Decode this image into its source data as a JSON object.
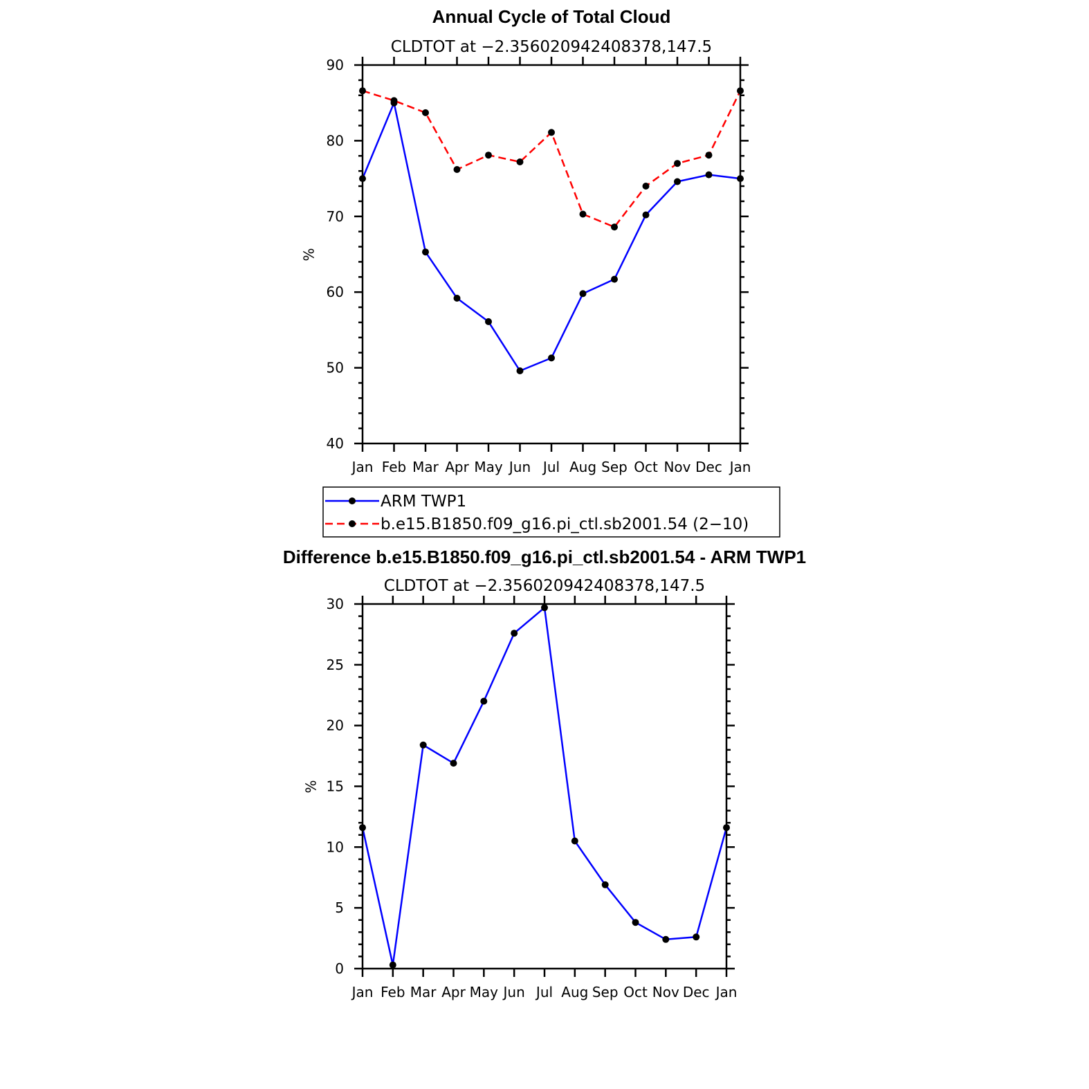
{
  "chart_data": [
    {
      "type": "line",
      "title": "Annual Cycle of Total Cloud",
      "subtitle": "CLDTOT at −2.356020942408378,147.5",
      "xlabel": "",
      "ylabel": "%",
      "categories": [
        "Jan",
        "Feb",
        "Mar",
        "Apr",
        "May",
        "Jun",
        "Jul",
        "Aug",
        "Sep",
        "Oct",
        "Nov",
        "Dec",
        "Jan"
      ],
      "ylim": [
        40,
        90
      ],
      "yticks": [
        40,
        50,
        60,
        70,
        80,
        90
      ],
      "yminor_step": 2,
      "grid": false,
      "series": [
        {
          "name": "ARM TWP1",
          "color": "#0000ff",
          "dash": "solid",
          "marker": "dot",
          "values": [
            75.0,
            85.0,
            65.3,
            59.2,
            56.1,
            49.6,
            51.3,
            59.8,
            61.7,
            70.2,
            74.6,
            75.5,
            75.0
          ]
        },
        {
          "name": "b.e15.B1850.f09_g16.pi_ctl.sb2001.54 (2−10)",
          "color": "#ff0000",
          "dash": "dashed",
          "marker": "dot",
          "values": [
            86.6,
            85.3,
            83.7,
            76.2,
            78.1,
            77.2,
            81.1,
            70.3,
            68.6,
            74.0,
            77.0,
            78.1,
            86.6
          ]
        }
      ],
      "legend": "below"
    },
    {
      "type": "line",
      "title": "Difference b.e15.B1850.f09_g16.pi_ctl.sb2001.54 - ARM TWP1",
      "subtitle": "CLDTOT at −2.356020942408378,147.5",
      "xlabel": "",
      "ylabel": "%",
      "categories": [
        "Jan",
        "Feb",
        "Mar",
        "Apr",
        "May",
        "Jun",
        "Jul",
        "Aug",
        "Sep",
        "Oct",
        "Nov",
        "Dec",
        "Jan"
      ],
      "ylim": [
        0,
        30
      ],
      "yticks": [
        0,
        5,
        10,
        15,
        20,
        25,
        30
      ],
      "yminor_step": 1,
      "grid": false,
      "series": [
        {
          "color": "#0000ff",
          "dash": "solid",
          "marker": "dot",
          "values": [
            11.6,
            0.3,
            18.4,
            16.9,
            22.0,
            27.6,
            29.7,
            10.5,
            6.9,
            3.8,
            2.4,
            2.6,
            11.6
          ]
        }
      ]
    }
  ]
}
